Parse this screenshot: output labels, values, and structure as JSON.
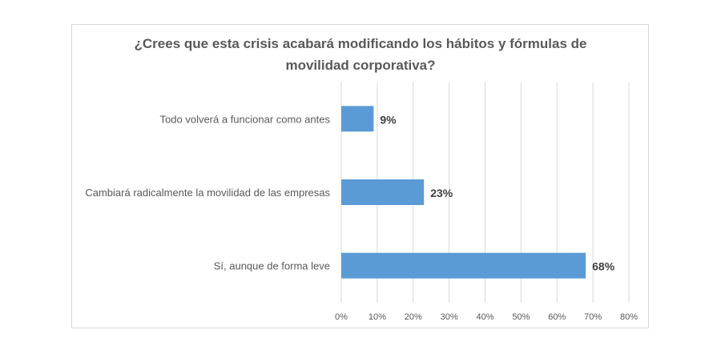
{
  "chart_data": {
    "type": "bar",
    "orientation": "horizontal",
    "title": "¿Crees que esta crisis acabará modificando los hábitos y fórmulas de movilidad corporativa?",
    "title_lines": [
      "¿Crees que esta crisis acabará modificando los hábitos y fórmulas de",
      "movilidad corporativa?"
    ],
    "categories": [
      "Todo volverá a funcionar como antes",
      "Cambiará radicalmente la movilidad de las empresas",
      "Sí, aunque de forma leve"
    ],
    "values": [
      9,
      23,
      68
    ],
    "data_labels": [
      "9%",
      "23%",
      "68%"
    ],
    "xlim": [
      0,
      80
    ],
    "xticks": [
      "0%",
      "10%",
      "20%",
      "30%",
      "40%",
      "50%",
      "60%",
      "70%",
      "80%"
    ],
    "xlabel": "",
    "ylabel": "",
    "grid": "vertical",
    "legend": "none",
    "colors": {
      "bar": "#5b9bd5",
      "grid": "#d9d9d9",
      "text": "#595959",
      "label": "#404040"
    }
  }
}
